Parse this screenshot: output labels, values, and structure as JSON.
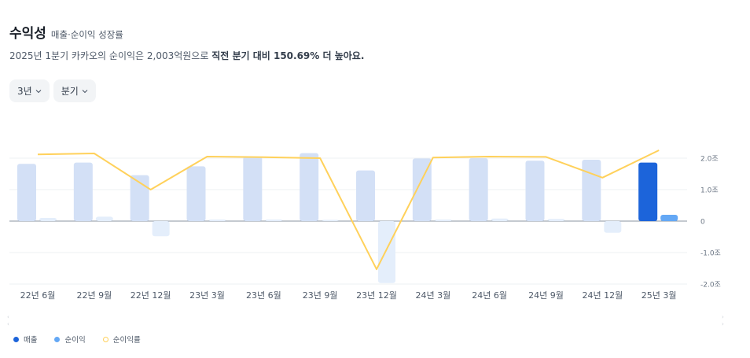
{
  "header": {
    "title": "수익성",
    "subtitle": "매출·순이익 성장률",
    "summary_prefix": "2025년 1분기 카카오의 순이익은 2,003억원으로 ",
    "summary_bold": "직전 분기 대비 150.69% 더 높아요."
  },
  "filters": [
    {
      "label": "3년",
      "icon": "chevron-down-icon"
    },
    {
      "label": "분기",
      "icon": "chevron-down-icon"
    }
  ],
  "colors": {
    "revenue_past": "#d3e0f6",
    "revenue_current": "#1c64da",
    "netincome_past": "#e4eefb",
    "netincome_current": "#64a8f5",
    "margin_line": "#ffd15b",
    "axis": "#8b95a1",
    "grid": "#eef0f3"
  },
  "chart_data": {
    "type": "bar",
    "categories": [
      "22년 6월",
      "22년 9월",
      "22년 12월",
      "23년 3월",
      "23년 6월",
      "23년 9월",
      "23년 12월",
      "24년 3월",
      "24년 6월",
      "24년 9월",
      "24년 12월",
      "25년 3월"
    ],
    "series": [
      {
        "name": "매출",
        "kind": "bar",
        "values": [
          1.82,
          1.86,
          1.46,
          1.74,
          2.05,
          2.16,
          1.61,
          1.99,
          2.0,
          1.92,
          1.95,
          1.86
        ]
      },
      {
        "name": "순이익",
        "kind": "bar",
        "values": [
          0.1,
          0.14,
          -0.48,
          0.05,
          0.05,
          0.04,
          -1.97,
          0.05,
          0.08,
          0.07,
          -0.37,
          0.2
        ]
      },
      {
        "name": "순이익률",
        "kind": "line",
        "values": [
          2.12,
          2.15,
          1.0,
          2.05,
          2.03,
          2.0,
          -1.53,
          2.02,
          2.05,
          2.04,
          1.38,
          2.25
        ]
      }
    ],
    "y_ticks": [
      "2.0조",
      "1.0조",
      "0",
      "-1.0조",
      "-2.0조"
    ],
    "y_tick_values": [
      2,
      1,
      0,
      -1,
      -2
    ],
    "ylim": [
      -2,
      2
    ],
    "highlight_index": 11,
    "legend_position": "bottom-left",
    "grid": true
  }
}
